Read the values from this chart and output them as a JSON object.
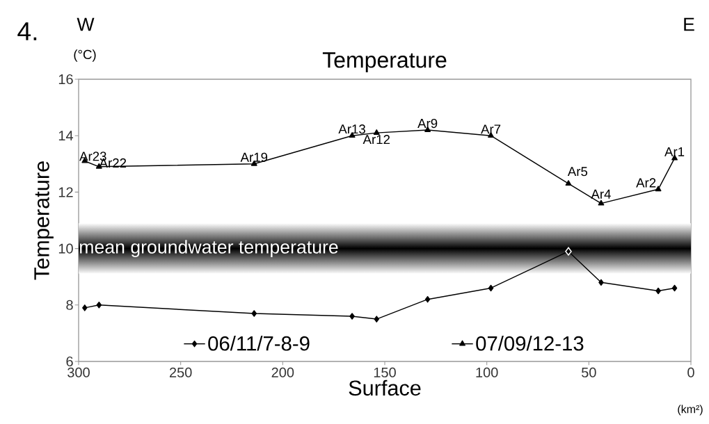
{
  "chart_data": {
    "type": "line",
    "title": "Temperature",
    "xlabel": "Surface",
    "ylabel": "Temperature",
    "x": [
      297,
      290,
      214,
      166,
      154,
      129,
      98,
      60,
      44,
      16,
      8
    ],
    "series": [
      {
        "name": "06/11/7-8-9",
        "color": "#000000",
        "marker": "diamond",
        "colors": [
          "#000000",
          "#000000",
          "#000000",
          "#000000",
          "#000000",
          "#000000",
          "#000000",
          "#ffffff",
          "#000000",
          "#000000",
          "#000000"
        ],
        "values": [
          7.9,
          8.0,
          7.7,
          7.6,
          7.5,
          8.2,
          8.6,
          9.9,
          8.8,
          8.5,
          8.6
        ]
      },
      {
        "name": "07/09/12-13",
        "color": "#000000",
        "marker": "triangle",
        "values": [
          13.1,
          12.9,
          13.0,
          14.0,
          14.1,
          14.2,
          14.0,
          12.3,
          11.6,
          12.1,
          13.2
        ]
      }
    ],
    "xlim": [
      300,
      0
    ],
    "ylim": [
      6,
      16
    ],
    "xticks": [
      300,
      250,
      200,
      150,
      100,
      50,
      0
    ],
    "yticks": [
      6,
      8,
      10,
      12,
      14,
      16
    ],
    "bands": [
      {
        "axis": "y",
        "from": 9.1,
        "to": 10.9,
        "label": "mean groundwater temperature",
        "color": "#000000"
      }
    ],
    "legend": "bottom",
    "grid": false,
    "line_style": "solid",
    "annotations": [
      "4.",
      "W",
      "E",
      "(°C)",
      "(km²)",
      {
        "text": "Ar23",
        "x": 297,
        "y": 13.1
      },
      {
        "text": "Ar22",
        "x": 290,
        "y": 12.9
      },
      {
        "text": "Ar19",
        "x": 214,
        "y": 13.0
      },
      {
        "text": "Ar13",
        "x": 166,
        "y": 14.0
      },
      {
        "text": "Ar12",
        "x": 154,
        "y": 14.1
      },
      {
        "text": "Ar9",
        "x": 129,
        "y": 14.2
      },
      {
        "text": "Ar7",
        "x": 98,
        "y": 14.0
      },
      {
        "text": "Ar5",
        "x": 60,
        "y": 12.3
      },
      {
        "text": "Ar4",
        "x": 44,
        "y": 11.6
      },
      {
        "text": "Ar2",
        "x": 16,
        "y": 12.1
      },
      {
        "text": "Ar1",
        "x": 8,
        "y": 13.2
      }
    ]
  }
}
